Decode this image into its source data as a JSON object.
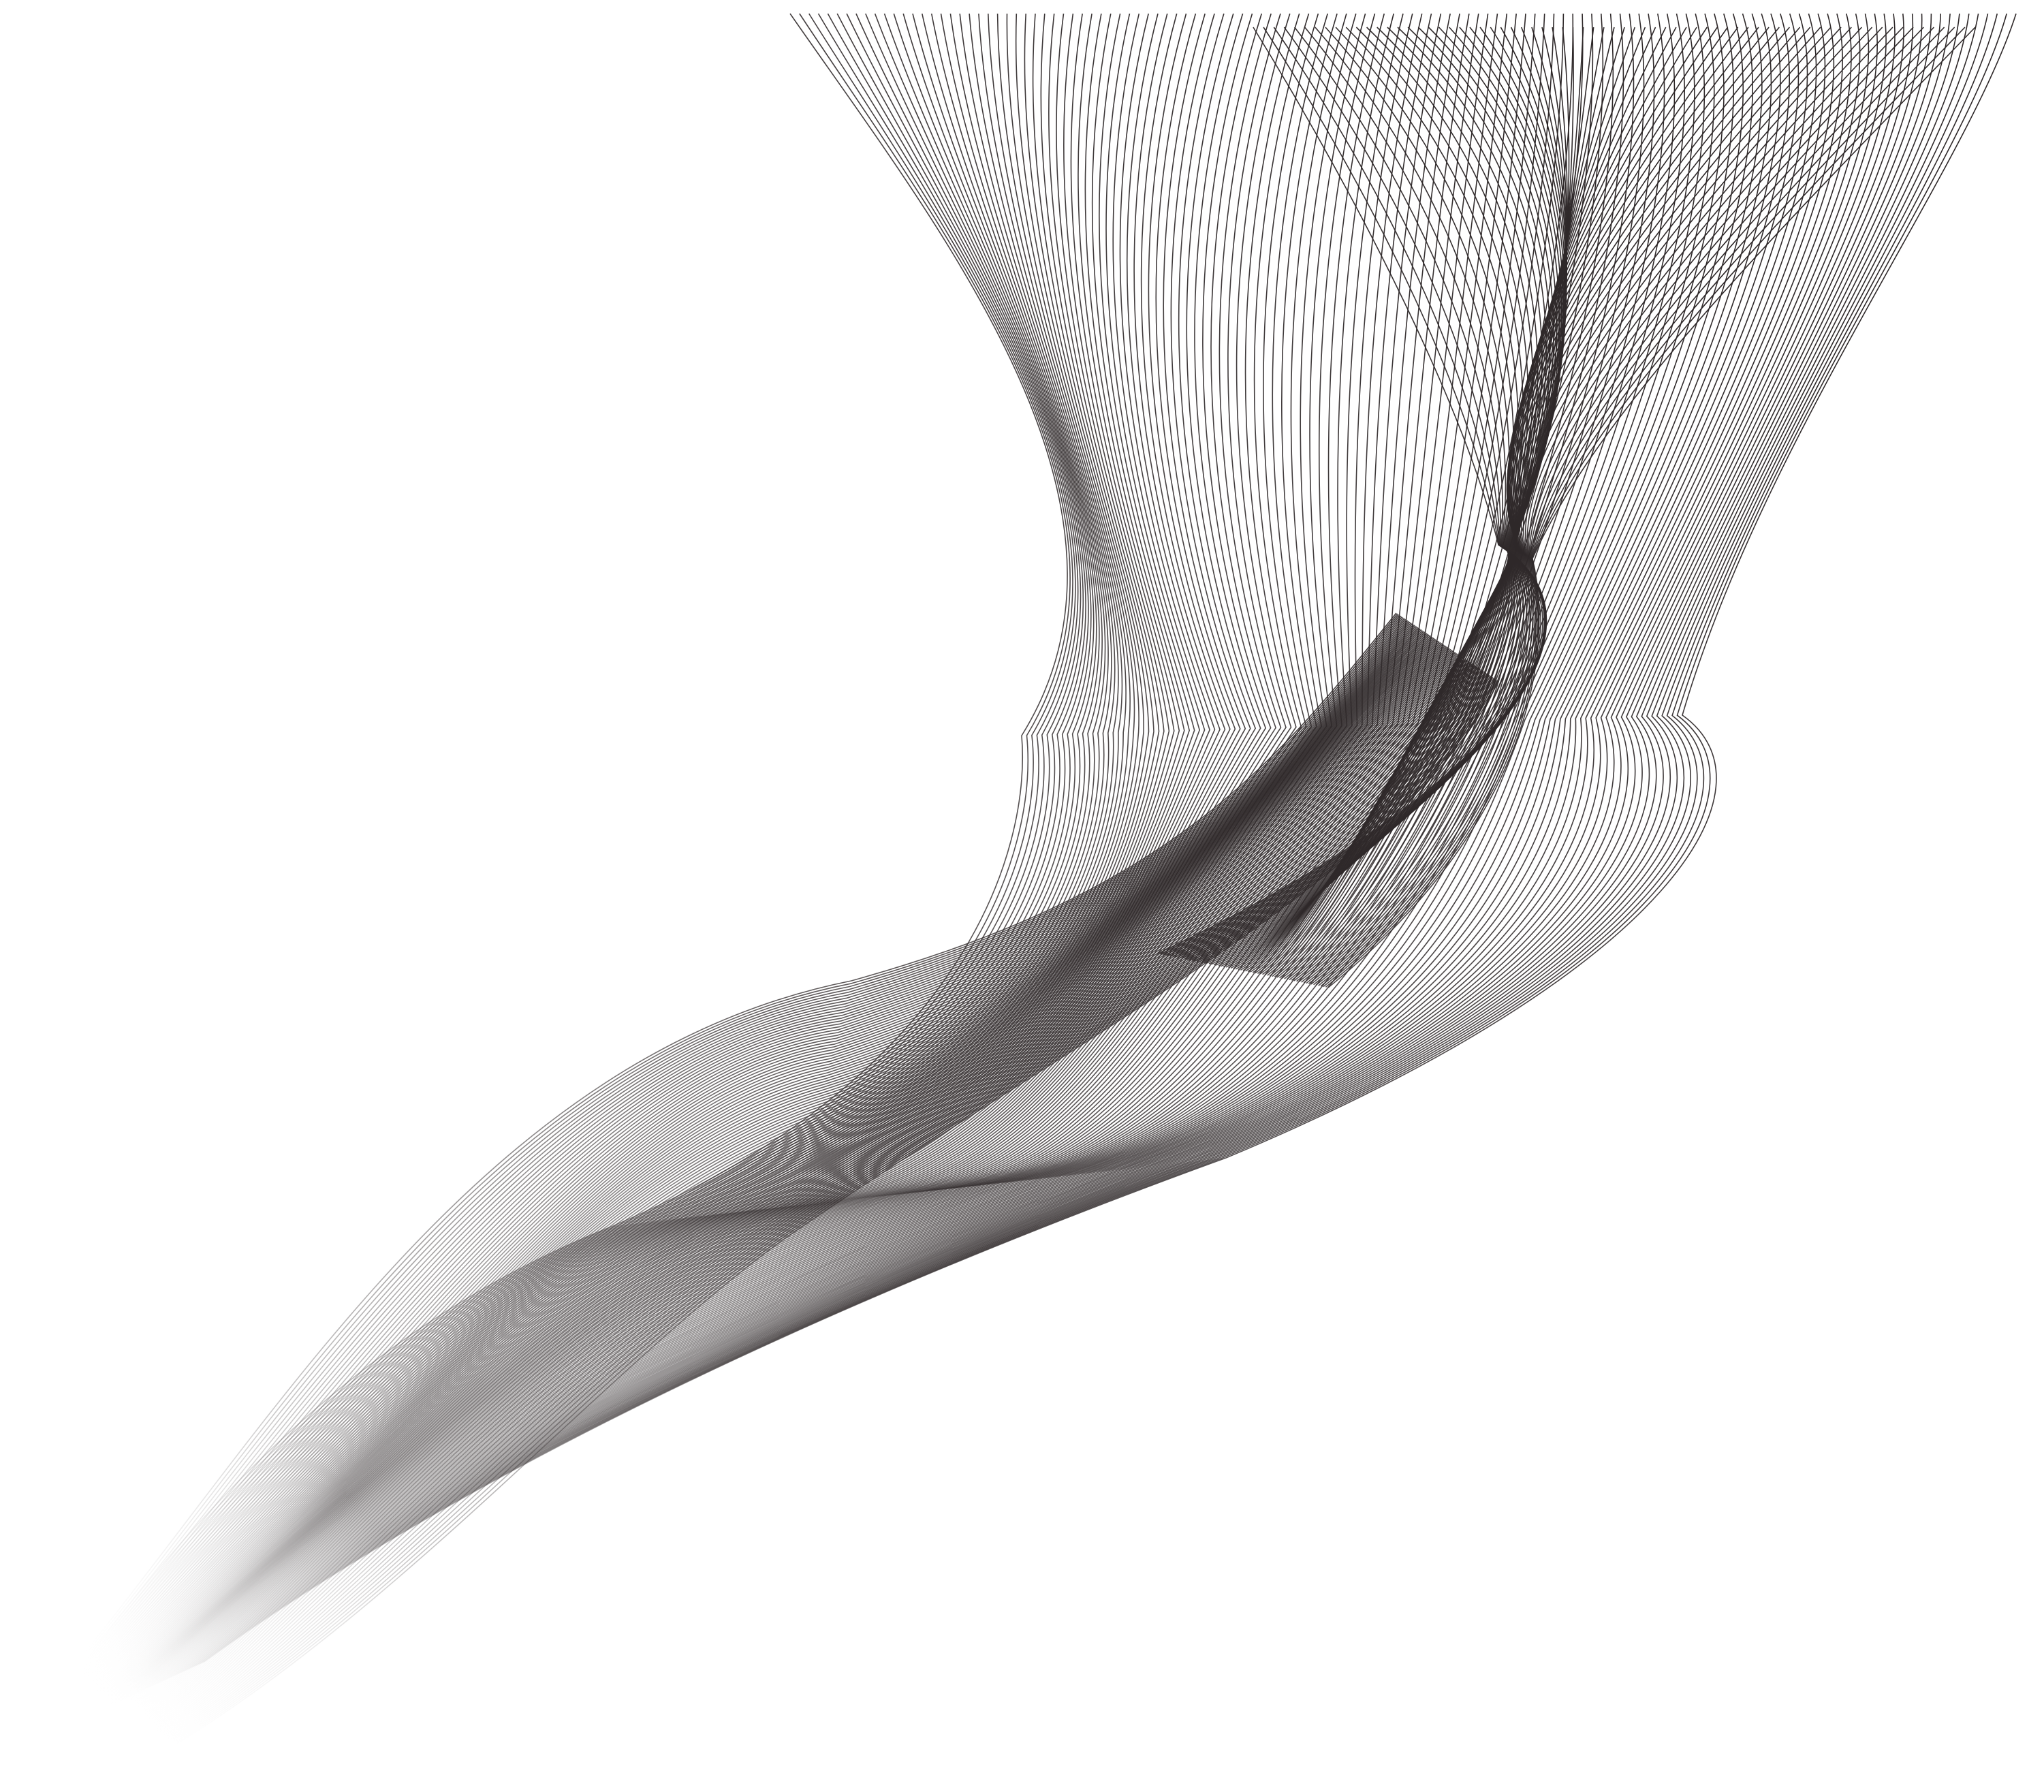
{
  "artwork": {
    "subject": "abstract-wave-wireframe",
    "background": "#ffffff",
    "stroke_dark": "#2e2829",
    "stroke_light": "#ffffff",
    "ribbons": [
      {
        "name": "main-wave-ribbon",
        "lines": 130
      },
      {
        "name": "rear-wave-ribbon",
        "lines": 90
      },
      {
        "name": "front-fold-ribbon",
        "lines": 70
      }
    ]
  }
}
